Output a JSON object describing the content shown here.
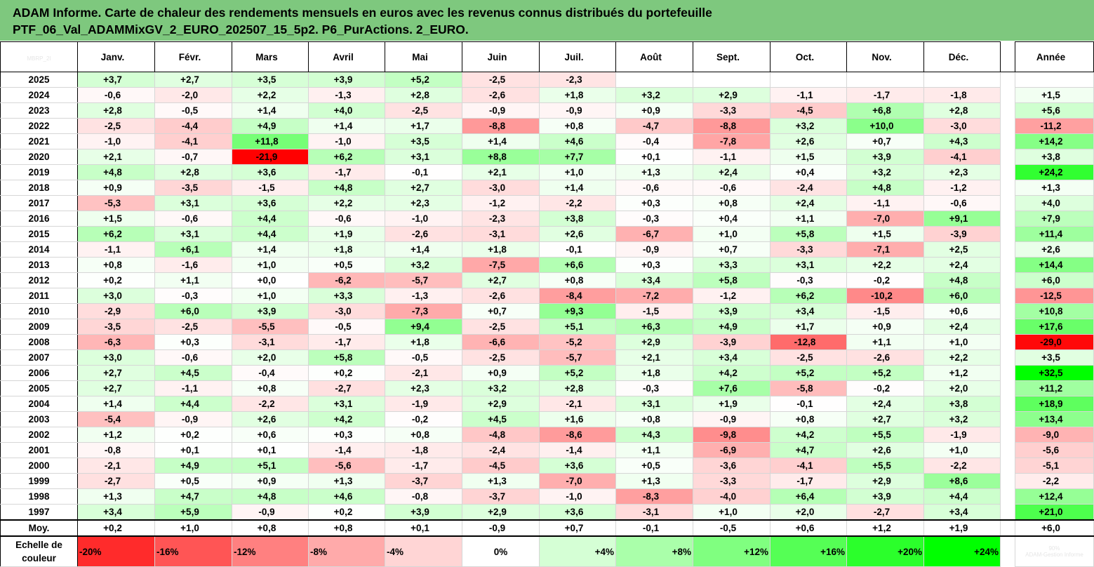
{
  "title": {
    "line1": "ADAM Informe. Carte de chaleur des rendements mensuels en euros avec les revenus connus distribués du portefeuille",
    "line2": "PTF_06_Val_ADAMMixGV_2_EURO_202507_15_5p2. P6_PurActions. 2_EURO."
  },
  "corner_watermark": "MBRP_2I",
  "chart_data": {
    "type": "heatmap",
    "months": [
      "Janv.",
      "Févr.",
      "Mars",
      "Avril",
      "Mai",
      "Juin",
      "Juil.",
      "Août",
      "Sept.",
      "Oct.",
      "Nov.",
      "Déc."
    ],
    "annual_label": "Année",
    "rows": [
      {
        "year": "2025",
        "values": [
          "+3,7",
          "+2,7",
          "+3,5",
          "+3,9",
          "+5,2",
          "-2,5",
          "-2,3",
          "",
          "",
          "",
          "",
          ""
        ],
        "annual": ""
      },
      {
        "year": "2024",
        "values": [
          "-0,6",
          "-2,0",
          "+2,2",
          "-1,3",
          "+2,8",
          "-2,6",
          "+1,8",
          "+3,2",
          "+2,9",
          "-1,1",
          "-1,7",
          "-1,8"
        ],
        "annual": "+1,5"
      },
      {
        "year": "2023",
        "values": [
          "+2,8",
          "-0,5",
          "+1,4",
          "+4,0",
          "-2,5",
          "-0,9",
          "-0,9",
          "+0,9",
          "-3,3",
          "-4,5",
          "+6,8",
          "+2,8"
        ],
        "annual": "+5,6"
      },
      {
        "year": "2022",
        "values": [
          "-2,5",
          "-4,4",
          "+4,9",
          "+1,4",
          "+1,7",
          "-8,8",
          "+0,8",
          "-4,7",
          "-8,8",
          "+3,2",
          "+10,0",
          "-3,0"
        ],
        "annual": "-11,2"
      },
      {
        "year": "2021",
        "values": [
          "-1,0",
          "-4,1",
          "+11,8",
          "-1,0",
          "+3,5",
          "+1,4",
          "+4,6",
          "-0,4",
          "-7,8",
          "+2,6",
          "+0,7",
          "+4,3"
        ],
        "annual": "+14,2"
      },
      {
        "year": "2020",
        "values": [
          "+2,1",
          "-0,7",
          "-21,9",
          "+6,2",
          "+3,1",
          "+8,8",
          "+7,7",
          "+0,1",
          "-1,1",
          "+1,5",
          "+3,9",
          "-4,1"
        ],
        "annual": "+3,8"
      },
      {
        "year": "2019",
        "values": [
          "+4,8",
          "+2,8",
          "+3,6",
          "-1,7",
          "-0,1",
          "+2,1",
          "+1,0",
          "+1,3",
          "+2,4",
          "+0,4",
          "+3,2",
          "+2,3"
        ],
        "annual": "+24,2"
      },
      {
        "year": "2018",
        "values": [
          "+0,9",
          "-3,5",
          "-1,5",
          "+4,8",
          "+2,7",
          "-3,0",
          "+1,4",
          "-0,6",
          "-0,6",
          "-2,4",
          "+4,8",
          "-1,2"
        ],
        "annual": "+1,3"
      },
      {
        "year": "2017",
        "values": [
          "-5,3",
          "+3,1",
          "+3,6",
          "+2,2",
          "+2,3",
          "-1,2",
          "-2,2",
          "+0,3",
          "+0,8",
          "+2,4",
          "-1,1",
          "-0,6"
        ],
        "annual": "+4,0"
      },
      {
        "year": "2016",
        "values": [
          "+1,5",
          "-0,6",
          "+4,4",
          "-0,6",
          "-1,0",
          "-2,3",
          "+3,8",
          "-0,3",
          "+0,4",
          "+1,1",
          "-7,0",
          "+9,1"
        ],
        "annual": "+7,9"
      },
      {
        "year": "2015",
        "values": [
          "+6,2",
          "+3,1",
          "+4,4",
          "+1,9",
          "-2,6",
          "-3,1",
          "+2,6",
          "-6,7",
          "+1,0",
          "+5,8",
          "+1,5",
          "-3,9"
        ],
        "annual": "+11,4"
      },
      {
        "year": "2014",
        "values": [
          "-1,1",
          "+6,1",
          "+1,4",
          "+1,8",
          "+1,4",
          "+1,8",
          "-0,1",
          "-0,9",
          "+0,7",
          "-3,3",
          "-7,1",
          "+2,5"
        ],
        "annual": "+2,6"
      },
      {
        "year": "2013",
        "values": [
          "+0,8",
          "-1,6",
          "+1,0",
          "+0,5",
          "+3,2",
          "-7,5",
          "+6,6",
          "+0,3",
          "+3,3",
          "+3,1",
          "+2,2",
          "+2,4"
        ],
        "annual": "+14,4"
      },
      {
        "year": "2012",
        "values": [
          "+0,2",
          "+1,1",
          "+0,0",
          "-6,2",
          "-5,7",
          "+2,7",
          "+0,8",
          "+3,4",
          "+5,8",
          "-0,3",
          "-0,2",
          "+4,8"
        ],
        "annual": "+6,0"
      },
      {
        "year": "2011",
        "values": [
          "+3,0",
          "-0,3",
          "+1,0",
          "+3,3",
          "-1,3",
          "-2,6",
          "-8,4",
          "-7,2",
          "-1,2",
          "+6,2",
          "-10,2",
          "+6,0"
        ],
        "annual": "-12,5"
      },
      {
        "year": "2010",
        "values": [
          "-2,9",
          "+6,0",
          "+3,9",
          "-3,0",
          "-7,3",
          "+0,7",
          "+9,3",
          "-1,5",
          "+3,9",
          "+3,4",
          "-1,5",
          "+0,6"
        ],
        "annual": "+10,8"
      },
      {
        "year": "2009",
        "values": [
          "-3,5",
          "-2,5",
          "-5,5",
          "-0,5",
          "+9,4",
          "-2,5",
          "+5,1",
          "+6,3",
          "+4,9",
          "+1,7",
          "+0,9",
          "+2,4"
        ],
        "annual": "+17,6"
      },
      {
        "year": "2008",
        "values": [
          "-6,3",
          "+0,3",
          "-3,1",
          "-1,7",
          "+1,8",
          "-6,6",
          "-5,2",
          "+2,9",
          "-3,9",
          "-12,8",
          "+1,1",
          "+1,0"
        ],
        "annual": "-29,0"
      },
      {
        "year": "2007",
        "values": [
          "+3,0",
          "-0,6",
          "+2,0",
          "+5,8",
          "-0,5",
          "-2,5",
          "-5,7",
          "+2,1",
          "+3,4",
          "-2,5",
          "-2,6",
          "+2,2"
        ],
        "annual": "+3,5"
      },
      {
        "year": "2006",
        "values": [
          "+2,7",
          "+4,5",
          "-0,4",
          "+0,2",
          "-2,1",
          "+0,9",
          "+5,2",
          "+1,8",
          "+4,2",
          "+5,2",
          "+5,2",
          "+1,2"
        ],
        "annual": "+32,5"
      },
      {
        "year": "2005",
        "values": [
          "+2,7",
          "-1,1",
          "+0,8",
          "-2,7",
          "+2,3",
          "+3,2",
          "+2,8",
          "-0,3",
          "+7,6",
          "-5,8",
          "-0,2",
          "+2,0"
        ],
        "annual": "+11,2"
      },
      {
        "year": "2004",
        "values": [
          "+1,4",
          "+4,4",
          "-2,2",
          "+3,1",
          "-1,9",
          "+2,9",
          "-2,1",
          "+3,1",
          "+1,9",
          "-0,1",
          "+2,4",
          "+3,8"
        ],
        "annual": "+18,9"
      },
      {
        "year": "2003",
        "values": [
          "-5,4",
          "-0,9",
          "+2,6",
          "+4,2",
          "-0,2",
          "+4,5",
          "+1,6",
          "+0,8",
          "-0,9",
          "+0,8",
          "+2,7",
          "+3,2"
        ],
        "annual": "+13,4"
      },
      {
        "year": "2002",
        "values": [
          "+1,2",
          "+0,2",
          "+0,6",
          "+0,3",
          "+0,8",
          "-4,8",
          "-8,6",
          "+4,3",
          "-9,8",
          "+4,2",
          "+5,5",
          "-1,9"
        ],
        "annual": "-9,0"
      },
      {
        "year": "2001",
        "values": [
          "-0,8",
          "+0,1",
          "+0,1",
          "-1,4",
          "-1,8",
          "-2,4",
          "-1,4",
          "+1,1",
          "-6,9",
          "+4,7",
          "+2,6",
          "+1,0"
        ],
        "annual": "-5,6"
      },
      {
        "year": "2000",
        "values": [
          "-2,1",
          "+4,9",
          "+5,1",
          "-5,6",
          "-1,7",
          "-4,5",
          "+3,6",
          "+0,5",
          "-3,6",
          "-4,1",
          "+5,5",
          "-2,2"
        ],
        "annual": "-5,1"
      },
      {
        "year": "1999",
        "values": [
          "-2,7",
          "+0,5",
          "+0,9",
          "+1,3",
          "-3,7",
          "+1,3",
          "-7,0",
          "+1,3",
          "-3,3",
          "-1,7",
          "+2,9",
          "+8,6"
        ],
        "annual": "-2,2"
      },
      {
        "year": "1998",
        "values": [
          "+1,3",
          "+4,7",
          "+4,8",
          "+4,6",
          "-0,8",
          "-3,7",
          "-1,0",
          "-8,3",
          "-4,0",
          "+6,4",
          "+3,9",
          "+4,4"
        ],
        "annual": "+12,4"
      },
      {
        "year": "1997",
        "values": [
          "+3,4",
          "+5,9",
          "-0,9",
          "+0,2",
          "+3,9",
          "+2,9",
          "+3,6",
          "-3,1",
          "+1,0",
          "+2,0",
          "-2,7",
          "+3,4"
        ],
        "annual": "+21,0"
      }
    ],
    "average": {
      "label": "Moy.",
      "values": [
        "+0,2",
        "+1,0",
        "+0,8",
        "+0,8",
        "+0,1",
        "-0,9",
        "+0,7",
        "-0,1",
        "-0,5",
        "+0,6",
        "+1,2",
        "+1,9"
      ],
      "annual": "+6,0"
    },
    "scale": {
      "label_line1": "Echelle de",
      "label_line2": "couleur",
      "stops": [
        "-20%",
        "-16%",
        "-12%",
        "-8%",
        "-4%",
        "0%",
        "+4%",
        "+8%",
        "+12%",
        "+16%",
        "+20%",
        "+24%"
      ],
      "annual_stop_label": "90%",
      "annual_stop_caption": "ADAM-Gestion Informe"
    },
    "color_scale": {
      "negative": "#ff0000",
      "neutral": "#ffffff",
      "positive": "#00ff00"
    }
  }
}
